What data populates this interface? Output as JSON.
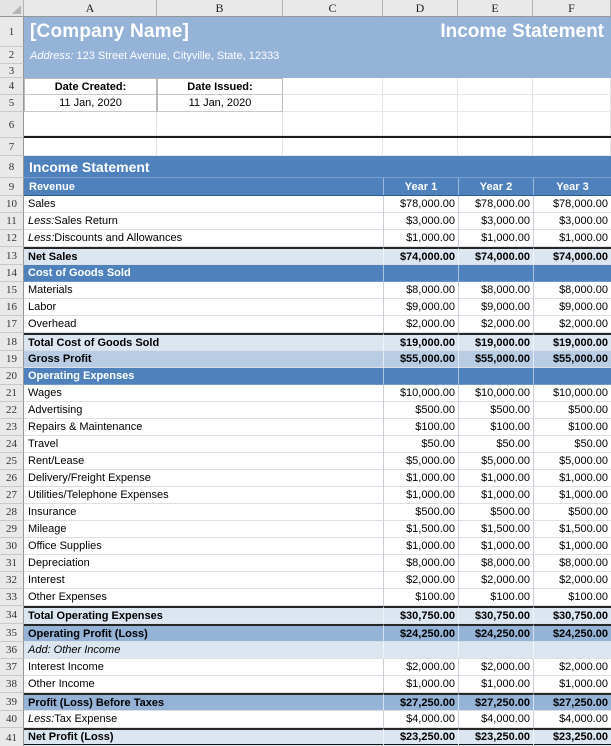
{
  "palette": {
    "banner_bg": "#95B3D7",
    "section_header_bg": "#4F81BD",
    "total_row_bg": "#DCE6F1",
    "gross_profit_bg": "#B8CCE4",
    "profit_row_bg": "#95B3D7",
    "header_text": "#FFFFFF"
  },
  "spreadsheet": {
    "column_headers": [
      "A",
      "B",
      "C",
      "D",
      "E",
      "F"
    ],
    "top_row_numbers": [
      "1",
      "2",
      "3",
      "4",
      "5",
      "6",
      "7",
      "8",
      "9"
    ]
  },
  "banner": {
    "company_name": "[Company Name]",
    "title": "Income Statement",
    "address_label": "Address:",
    "address_value": "123 Street Avenue, Cityville, State, 12333"
  },
  "dates": {
    "created_label": "Date Created:",
    "created_value": "11 Jan, 2020",
    "issued_label": "Date Issued:",
    "issued_value": "11 Jan, 2020"
  },
  "statement": {
    "title": "Income Statement",
    "revenue_header": "Revenue",
    "year_headers": [
      "Year 1",
      "Year 2",
      "Year 3"
    ],
    "rows": [
      {
        "num": "10",
        "label": "Sales",
        "type": "item",
        "values": [
          "$78,000.00",
          "$78,000.00",
          "$78,000.00"
        ]
      },
      {
        "num": "11",
        "prefix": "Less:",
        "label": " Sales Return",
        "type": "item",
        "values": [
          "$3,000.00",
          "$3,000.00",
          "$3,000.00"
        ]
      },
      {
        "num": "12",
        "prefix": "Less:",
        "label": " Discounts and Allowances",
        "type": "item",
        "values": [
          "$1,000.00",
          "$1,000.00",
          "$1,000.00"
        ]
      },
      {
        "num": "13",
        "label": "Net Sales",
        "type": "total",
        "top_border": true,
        "values": [
          "$74,000.00",
          "$74,000.00",
          "$74,000.00"
        ]
      },
      {
        "num": "14",
        "label": "Cost of Goods Sold",
        "type": "section",
        "values": [
          "",
          "",
          ""
        ]
      },
      {
        "num": "15",
        "label": "Materials",
        "type": "item",
        "values": [
          "$8,000.00",
          "$8,000.00",
          "$8,000.00"
        ]
      },
      {
        "num": "16",
        "label": "Labor",
        "type": "item",
        "values": [
          "$9,000.00",
          "$9,000.00",
          "$9,000.00"
        ]
      },
      {
        "num": "17",
        "label": "Overhead",
        "type": "item",
        "values": [
          "$2,000.00",
          "$2,000.00",
          "$2,000.00"
        ]
      },
      {
        "num": "18",
        "label": "Total Cost of Goods Sold",
        "type": "total",
        "top_border": true,
        "values": [
          "$19,000.00",
          "$19,000.00",
          "$19,000.00"
        ]
      },
      {
        "num": "19",
        "label": "Gross Profit",
        "type": "gross",
        "values": [
          "$55,000.00",
          "$55,000.00",
          "$55,000.00"
        ]
      },
      {
        "num": "20",
        "label": "Operating Expenses",
        "type": "section",
        "values": [
          "",
          "",
          ""
        ]
      },
      {
        "num": "21",
        "label": "Wages",
        "type": "item",
        "values": [
          "$10,000.00",
          "$10,000.00",
          "$10,000.00"
        ]
      },
      {
        "num": "22",
        "label": "Advertising",
        "type": "item",
        "values": [
          "$500.00",
          "$500.00",
          "$500.00"
        ]
      },
      {
        "num": "23",
        "label": "Repairs & Maintenance",
        "type": "item",
        "values": [
          "$100.00",
          "$100.00",
          "$100.00"
        ]
      },
      {
        "num": "24",
        "label": "Travel",
        "type": "item",
        "values": [
          "$50.00",
          "$50.00",
          "$50.00"
        ]
      },
      {
        "num": "25",
        "label": "Rent/Lease",
        "type": "item",
        "values": [
          "$5,000.00",
          "$5,000.00",
          "$5,000.00"
        ]
      },
      {
        "num": "26",
        "label": "Delivery/Freight Expense",
        "type": "item",
        "values": [
          "$1,000.00",
          "$1,000.00",
          "$1,000.00"
        ]
      },
      {
        "num": "27",
        "label": "Utilities/Telephone Expenses",
        "type": "item",
        "values": [
          "$1,000.00",
          "$1,000.00",
          "$1,000.00"
        ]
      },
      {
        "num": "28",
        "label": "Insurance",
        "type": "item",
        "values": [
          "$500.00",
          "$500.00",
          "$500.00"
        ]
      },
      {
        "num": "29",
        "label": "Mileage",
        "type": "item",
        "values": [
          "$1,500.00",
          "$1,500.00",
          "$1,500.00"
        ]
      },
      {
        "num": "30",
        "label": "Office Supplies",
        "type": "item",
        "values": [
          "$1,000.00",
          "$1,000.00",
          "$1,000.00"
        ]
      },
      {
        "num": "31",
        "label": "Depreciation",
        "type": "item",
        "values": [
          "$8,000.00",
          "$8,000.00",
          "$8,000.00"
        ]
      },
      {
        "num": "32",
        "label": "Interest",
        "type": "item",
        "values": [
          "$2,000.00",
          "$2,000.00",
          "$2,000.00"
        ]
      },
      {
        "num": "33",
        "label": "Other Expenses",
        "type": "item",
        "values": [
          "$100.00",
          "$100.00",
          "$100.00"
        ]
      },
      {
        "num": "34",
        "label": "Total Operating Expenses",
        "type": "total",
        "top_border": true,
        "values": [
          "$30,750.00",
          "$30,750.00",
          "$30,750.00"
        ]
      },
      {
        "num": "35",
        "label": "Operating Profit (Loss)",
        "type": "profit",
        "top_border": true,
        "values": [
          "$24,250.00",
          "$24,250.00",
          "$24,250.00"
        ]
      },
      {
        "num": "36",
        "label": "Add: Other Income",
        "type": "note",
        "values": [
          "",
          "",
          ""
        ]
      },
      {
        "num": "37",
        "label": "Interest Income",
        "type": "item",
        "values": [
          "$2,000.00",
          "$2,000.00",
          "$2,000.00"
        ]
      },
      {
        "num": "38",
        "label": "Other Income",
        "type": "item",
        "values": [
          "$1,000.00",
          "$1,000.00",
          "$1,000.00"
        ]
      },
      {
        "num": "39",
        "label": "Profit (Loss) Before Taxes",
        "type": "profit",
        "top_border": true,
        "values": [
          "$27,250.00",
          "$27,250.00",
          "$27,250.00"
        ]
      },
      {
        "num": "40",
        "prefix": "Less:",
        "label": " Tax Expense",
        "type": "item",
        "values": [
          "$4,000.00",
          "$4,000.00",
          "$4,000.00"
        ]
      },
      {
        "num": "41",
        "label": "Net Profit (Loss)",
        "type": "total",
        "top_border": true,
        "double_bottom": true,
        "values": [
          "$23,250.00",
          "$23,250.00",
          "$23,250.00"
        ]
      }
    ]
  }
}
